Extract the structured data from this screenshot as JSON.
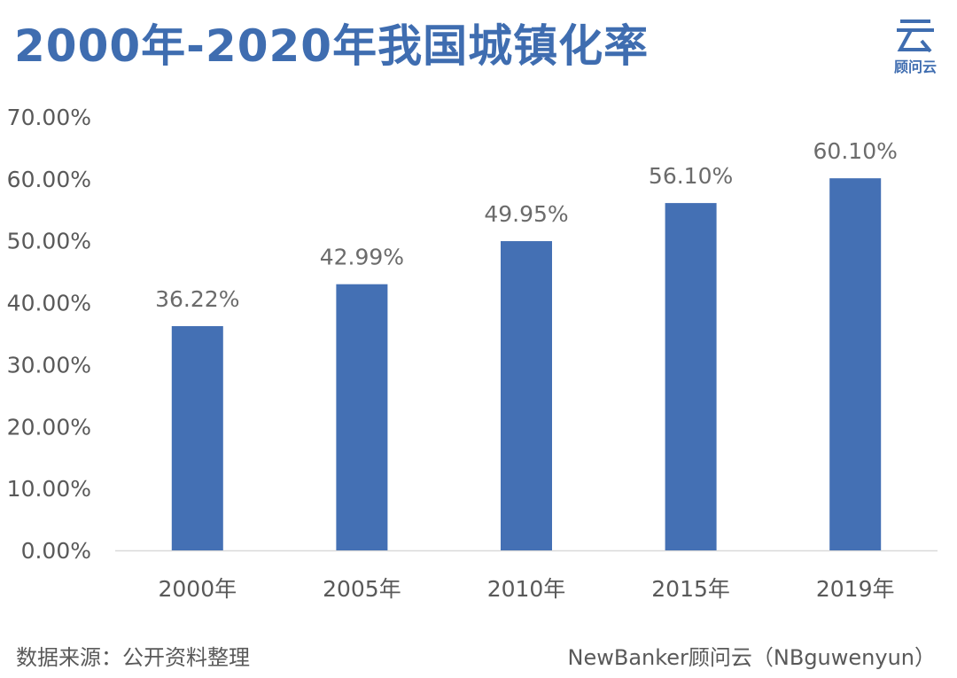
{
  "title": "2000年-2020年我国城镇化率",
  "logo": {
    "name": "gwy-logo-icon",
    "text": "顾问云"
  },
  "footer": {
    "source": "数据来源：公开资料整理",
    "credit": "NewBanker顾问云（NBguwenyun）"
  },
  "colors": {
    "bar": "#4470b4",
    "title": "#3f6db0",
    "axis": "#d9d9d9"
  },
  "chart_data": {
    "type": "bar",
    "title": "2000年-2020年我国城镇化率",
    "xlabel": "",
    "ylabel": "",
    "categories": [
      "2000年",
      "2005年",
      "2010年",
      "2015年",
      "2019年"
    ],
    "values": [
      36.22,
      42.99,
      49.95,
      56.1,
      60.1
    ],
    "value_labels": [
      "36.22%",
      "42.99%",
      "49.95%",
      "56.10%",
      "60.10%"
    ],
    "y_ticks": [
      "0.00%",
      "10.00%",
      "20.00%",
      "30.00%",
      "40.00%",
      "50.00%",
      "60.00%",
      "70.00%"
    ],
    "ylim": [
      0,
      70
    ],
    "grid": false,
    "legend": "none"
  }
}
